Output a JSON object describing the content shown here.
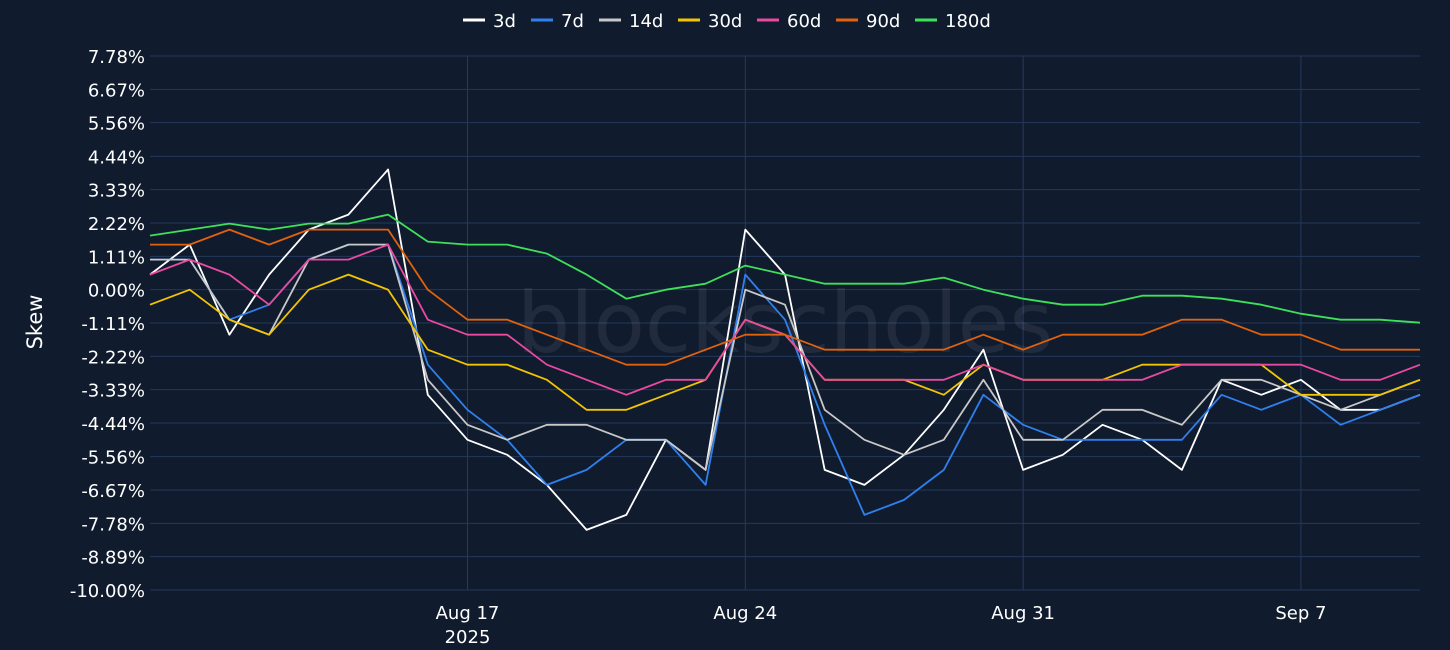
{
  "chart_data": {
    "type": "line",
    "title": "",
    "xlabel": "",
    "ylabel": "Skew",
    "watermark": "blockscholes",
    "x_range": [
      "2025-08-09",
      "2025-09-10"
    ],
    "x_ticks": [
      {
        "date": "2025-08-17",
        "label": "Aug 17",
        "sublabel": "2025"
      },
      {
        "date": "2025-08-24",
        "label": "Aug 24",
        "sublabel": ""
      },
      {
        "date": "2025-08-31",
        "label": "Aug 31",
        "sublabel": ""
      },
      {
        "date": "2025-09-07",
        "label": "Sep 7",
        "sublabel": ""
      }
    ],
    "ylim": [
      -10.0,
      7.78
    ],
    "y_ticks": [
      "7.78%",
      "6.67%",
      "5.56%",
      "4.44%",
      "3.33%",
      "2.22%",
      "1.11%",
      "0.00%",
      "-1.11%",
      "-2.22%",
      "-3.33%",
      "-4.44%",
      "-5.56%",
      "-6.67%",
      "-7.78%",
      "-8.89%",
      "-10.00%"
    ],
    "y_tick_values": [
      7.78,
      6.67,
      5.56,
      4.44,
      3.33,
      2.22,
      1.11,
      0.0,
      -1.11,
      -2.22,
      -3.33,
      -4.44,
      -5.56,
      -6.67,
      -7.78,
      -8.89,
      -10.0
    ],
    "grid": true,
    "legend_position": "top-center",
    "x": [
      "2025-08-09",
      "2025-08-10",
      "2025-08-11",
      "2025-08-12",
      "2025-08-13",
      "2025-08-14",
      "2025-08-15",
      "2025-08-16",
      "2025-08-17",
      "2025-08-18",
      "2025-08-19",
      "2025-08-20",
      "2025-08-21",
      "2025-08-22",
      "2025-08-23",
      "2025-08-24",
      "2025-08-25",
      "2025-08-26",
      "2025-08-27",
      "2025-08-28",
      "2025-08-29",
      "2025-08-30",
      "2025-08-31",
      "2025-09-01",
      "2025-09-02",
      "2025-09-03",
      "2025-09-04",
      "2025-09-05",
      "2025-09-06",
      "2025-09-07",
      "2025-09-08",
      "2025-09-09",
      "2025-09-10"
    ],
    "series": [
      {
        "name": "3d",
        "color": "#ffffff",
        "values": [
          0.5,
          1.5,
          -1.5,
          0.5,
          2.0,
          2.5,
          4.0,
          -3.5,
          -5.0,
          -5.5,
          -6.5,
          -8.0,
          -7.5,
          -5.0,
          -6.0,
          2.0,
          0.5,
          -6.0,
          -6.5,
          -5.5,
          -4.0,
          -2.0,
          -6.0,
          -5.5,
          -4.5,
          -5.0,
          -6.0,
          -3.0,
          -3.5,
          -3.0,
          -4.0,
          -4.0,
          -3.5
        ]
      },
      {
        "name": "7d",
        "color": "#2f80ed",
        "values": [
          1.0,
          1.0,
          -1.0,
          -0.5,
          1.0,
          1.5,
          1.5,
          -2.5,
          -4.0,
          -5.0,
          -6.5,
          -6.0,
          -5.0,
          -5.0,
          -6.5,
          0.5,
          -1.0,
          -4.5,
          -7.5,
          -7.0,
          -6.0,
          -3.5,
          -4.5,
          -5.0,
          -5.0,
          -5.0,
          -5.0,
          -3.5,
          -4.0,
          -3.5,
          -4.5,
          -4.0,
          -3.5
        ]
      },
      {
        "name": "14d",
        "color": "#c8c8c8",
        "values": [
          1.0,
          1.0,
          -1.0,
          -1.5,
          1.0,
          1.5,
          1.5,
          -3.0,
          -4.5,
          -5.0,
          -4.5,
          -4.5,
          -5.0,
          -5.0,
          -6.0,
          0.0,
          -0.5,
          -4.0,
          -5.0,
          -5.5,
          -5.0,
          -3.0,
          -5.0,
          -5.0,
          -4.0,
          -4.0,
          -4.5,
          -3.0,
          -3.0,
          -3.5,
          -4.0,
          -3.5,
          -3.0
        ]
      },
      {
        "name": "30d",
        "color": "#f2c500",
        "values": [
          -0.5,
          0.0,
          -1.0,
          -1.5,
          0.0,
          0.5,
          0.0,
          -2.0,
          -2.5,
          -2.5,
          -3.0,
          -4.0,
          -4.0,
          -3.5,
          -3.0,
          -1.0,
          -1.5,
          -3.0,
          -3.0,
          -3.0,
          -3.5,
          -2.5,
          -3.0,
          -3.0,
          -3.0,
          -2.5,
          -2.5,
          -2.5,
          -2.5,
          -3.5,
          -3.5,
          -3.5,
          -3.0
        ]
      },
      {
        "name": "60d",
        "color": "#e84aa0",
        "values": [
          0.5,
          1.0,
          0.5,
          -0.5,
          1.0,
          1.0,
          1.5,
          -1.0,
          -1.5,
          -1.5,
          -2.5,
          -3.0,
          -3.5,
          -3.0,
          -3.0,
          -1.0,
          -1.5,
          -3.0,
          -3.0,
          -3.0,
          -3.0,
          -2.5,
          -3.0,
          -3.0,
          -3.0,
          -3.0,
          -2.5,
          -2.5,
          -2.5,
          -2.5,
          -3.0,
          -3.0,
          -2.5
        ]
      },
      {
        "name": "90d",
        "color": "#e0620d",
        "values": [
          1.5,
          1.5,
          2.0,
          1.5,
          2.0,
          2.0,
          2.0,
          0.0,
          -1.0,
          -1.0,
          -1.5,
          -2.0,
          -2.5,
          -2.5,
          -2.0,
          -1.5,
          -1.5,
          -2.0,
          -2.0,
          -2.0,
          -2.0,
          -1.5,
          -2.0,
          -1.5,
          -1.5,
          -1.5,
          -1.0,
          -1.0,
          -1.5,
          -1.5,
          -2.0,
          -2.0,
          -2.0
        ]
      },
      {
        "name": "180d",
        "color": "#3ee05a",
        "values": [
          1.8,
          2.0,
          2.2,
          2.0,
          2.2,
          2.2,
          2.5,
          1.6,
          1.5,
          1.5,
          1.2,
          0.5,
          -0.3,
          0.0,
          0.2,
          0.8,
          0.5,
          0.2,
          0.2,
          0.2,
          0.4,
          0.0,
          -0.3,
          -0.5,
          -0.5,
          -0.2,
          -0.2,
          -0.3,
          -0.5,
          -0.8,
          -1.0,
          -1.0,
          -1.1
        ]
      }
    ]
  }
}
